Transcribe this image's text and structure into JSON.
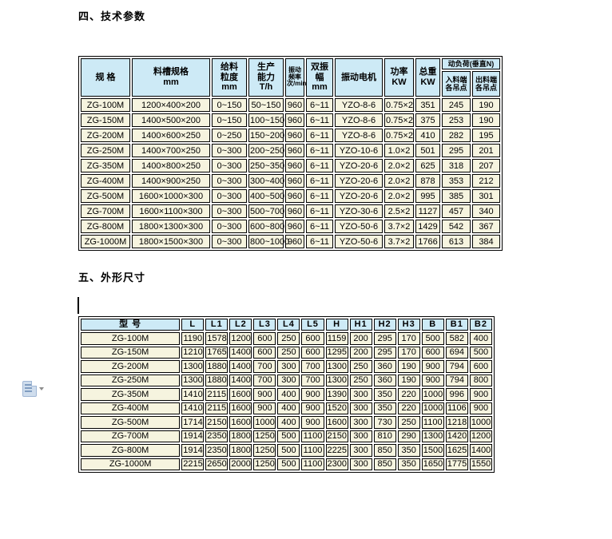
{
  "page": {
    "section1_title": "四、技术参数",
    "section2_title": "五、外形尺寸"
  },
  "colors": {
    "table_header_bg": "#cdeaf6",
    "table_row_bg": "#f6f4df",
    "table_border": "#000000",
    "page_bg": "#ffffff"
  },
  "table1": {
    "headers": {
      "spec": "规   格",
      "trough": "料槽规格\nmm",
      "feed_size": "给料\n粒度\nmm",
      "capacity": "生产\n能力\nT/h",
      "frequency": "振动\n频率\n次/min",
      "amplitude": "双振幅\nmm",
      "motor": "振动电机",
      "power": "功率\nKW",
      "weight": "总重\nKW",
      "dyn_load": "动负荷(垂直N)",
      "feed_end": "入料端\n各吊点",
      "discharge_end": "出料端\n各吊点"
    },
    "rows": [
      [
        "ZG-100M",
        "1200×400×200",
        "0~150",
        "50~150",
        "960",
        "6~11",
        "YZO-8-6",
        "0.75×2",
        "351",
        "245",
        "190"
      ],
      [
        "ZG-150M",
        "1400×500×200",
        "0~150",
        "100~150",
        "960",
        "6~11",
        "YZO-8-6",
        "0.75×2",
        "375",
        "253",
        "190"
      ],
      [
        "ZG-200M",
        "1400×600×250",
        "0~250",
        "150~200",
        "960",
        "6~11",
        "YZO-8-6",
        "0.75×2",
        "410",
        "282",
        "195"
      ],
      [
        "ZG-250M",
        "1400×700×250",
        "0~300",
        "200~250",
        "960",
        "6~11",
        "YZO-10-6",
        "1.0×2",
        "501",
        "295",
        "201"
      ],
      [
        "ZG-350M",
        "1400×800×250",
        "0~300",
        "250~350",
        "960",
        "6~11",
        "YZO-20-6",
        "2.0×2",
        "625",
        "318",
        "207"
      ],
      [
        "ZG-400M",
        "1400×900×250",
        "0~300",
        "300~400",
        "960",
        "6~11",
        "YZO-20-6",
        "2.0×2",
        "878",
        "353",
        "212"
      ],
      [
        "ZG-500M",
        "1600×1000×300",
        "0~300",
        "400~500",
        "960",
        "6~11",
        "YZO-20-6",
        "2.0×2",
        "995",
        "385",
        "301"
      ],
      [
        "ZG-700M",
        "1600×1100×300",
        "0~300",
        "500~700",
        "960",
        "6~11",
        "YZO-30-6",
        "2.5×2",
        "1127",
        "457",
        "340"
      ],
      [
        "ZG-800M",
        "1800×1300×300",
        "0~300",
        "600~800",
        "960",
        "6~11",
        "YZO-50-6",
        "3.7×2",
        "1429",
        "542",
        "367"
      ],
      [
        "ZG-1000M",
        "1800×1500×300",
        "0~300",
        "800~1000",
        "960",
        "6~11",
        "YZO-50-6",
        "3.7×2",
        "1766",
        "613",
        "384"
      ]
    ]
  },
  "table2": {
    "headers": [
      "型    号",
      "L",
      "L1",
      "L2",
      "L3",
      "L4",
      "L5",
      "H",
      "H1",
      "H2",
      "H3",
      "B",
      "B1",
      "B2"
    ],
    "rows": [
      [
        "ZG-100M",
        "1190",
        "1578",
        "1200",
        "600",
        "250",
        "600",
        "1159",
        "200",
        "295",
        "170",
        "500",
        "582",
        "400"
      ],
      [
        "ZG-150M",
        "1210",
        "1765",
        "1400",
        "600",
        "250",
        "600",
        "1295",
        "200",
        "295",
        "170",
        "600",
        "694",
        "500"
      ],
      [
        "ZG-200M",
        "1300",
        "1880",
        "1400",
        "700",
        "300",
        "700",
        "1300",
        "250",
        "360",
        "190",
        "900",
        "794",
        "600"
      ],
      [
        "ZG-250M",
        "1300",
        "1880",
        "1400",
        "700",
        "300",
        "700",
        "1300",
        "250",
        "360",
        "190",
        "900",
        "794",
        "800"
      ],
      [
        "ZG-350M",
        "1410",
        "2115",
        "1600",
        "900",
        "400",
        "900",
        "1390",
        "300",
        "350",
        "220",
        "1000",
        "996",
        "900"
      ],
      [
        "ZG-400M",
        "1410",
        "2115",
        "1600",
        "900",
        "400",
        "900",
        "1520",
        "300",
        "350",
        "220",
        "1000",
        "1106",
        "900"
      ],
      [
        "ZG-500M",
        "1714",
        "2150",
        "1600",
        "1000",
        "400",
        "900",
        "1600",
        "300",
        "730",
        "250",
        "1100",
        "1218",
        "1000"
      ],
      [
        "ZG-700M",
        "1914",
        "2350",
        "1800",
        "1250",
        "500",
        "1100",
        "2150",
        "300",
        "810",
        "290",
        "1300",
        "1420",
        "1200"
      ],
      [
        "ZG-800M",
        "1914",
        "2350",
        "1800",
        "1250",
        "500",
        "1100",
        "2225",
        "300",
        "850",
        "350",
        "1500",
        "1625",
        "1400"
      ],
      [
        "ZG-1000M",
        "2215",
        "2650",
        "2000",
        "1250",
        "500",
        "1100",
        "2300",
        "300",
        "850",
        "350",
        "1650",
        "1775",
        "1550"
      ]
    ]
  },
  "chrome": {
    "paste_options_icon": "paste-options"
  }
}
